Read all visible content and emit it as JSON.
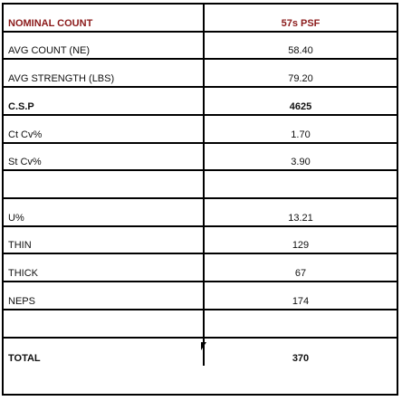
{
  "header": {
    "label": "NOMINAL COUNT",
    "value": "57s PSF"
  },
  "rows": [
    {
      "label": "AVG COUNT (NE)",
      "value": "58.40"
    },
    {
      "label": "AVG STRENGTH (LBS)",
      "value": "79.20"
    },
    {
      "label": "C.S.P",
      "value": "4625"
    },
    {
      "label": "Ct Cv%",
      "value": "1.70"
    },
    {
      "label": "St Cv%",
      "value": "3.90"
    },
    {
      "label": "",
      "value": ""
    },
    {
      "label": "U%",
      "value": "13.21"
    },
    {
      "label": "THIN",
      "value": "129"
    },
    {
      "label": "THICK",
      "value": "67"
    },
    {
      "label": "NEPS",
      "value": "174"
    },
    {
      "label": "",
      "value": ""
    },
    {
      "label": "TOTAL",
      "value": "370"
    }
  ]
}
